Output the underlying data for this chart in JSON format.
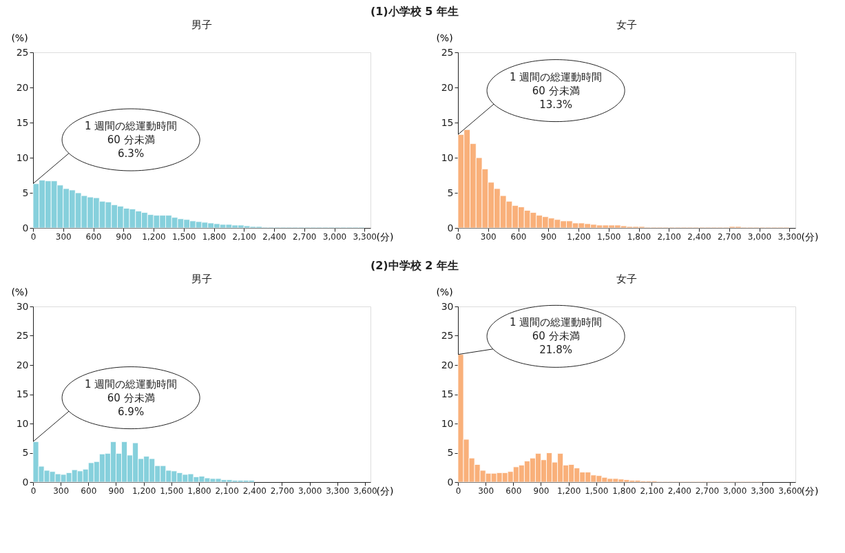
{
  "chart_data": [
    {
      "type": "histogram",
      "title": "(1)小学校 5 年生",
      "subtitle": "男子",
      "xlabel": "(分)",
      "ylabel": "(%)",
      "color": "#86d0dc",
      "bins": [
        0,
        60,
        120,
        180,
        240,
        300,
        360,
        420,
        480,
        540,
        600,
        660,
        720,
        780,
        840,
        900,
        960,
        1020,
        1080,
        1140,
        1200,
        1260,
        1320,
        1380,
        1440,
        1500,
        1560,
        1620,
        1680,
        1740,
        1800,
        1860,
        1920,
        1980,
        2040,
        2100,
        2160,
        2220,
        2280,
        2340,
        2400,
        2460,
        2520,
        2580,
        2640,
        2700,
        2760,
        2820,
        2880,
        2940,
        3000,
        3060,
        3120,
        3180,
        3240,
        3300
      ],
      "values": [
        6.3,
        6.8,
        6.7,
        6.7,
        6.1,
        5.6,
        5.4,
        5.0,
        4.6,
        4.4,
        4.3,
        3.8,
        3.7,
        3.3,
        3.1,
        2.8,
        2.7,
        2.4,
        2.2,
        1.9,
        1.8,
        1.8,
        1.8,
        1.5,
        1.3,
        1.2,
        1.0,
        0.9,
        0.8,
        0.7,
        0.6,
        0.5,
        0.5,
        0.4,
        0.4,
        0.3,
        0.2,
        0.2,
        0.1,
        0.1,
        0.1,
        0.1,
        0.1,
        0.1,
        0.1,
        0.1,
        0.1,
        0.1,
        0.1,
        0.1,
        0.1,
        0.1,
        0.1,
        0.1,
        0.1
      ],
      "xlim": [
        0,
        3360
      ],
      "xticks": [
        0,
        300,
        600,
        900,
        {
          "value": 1200,
          "label": "1,200"
        },
        {
          "value": 1500,
          "label": "1,500"
        },
        {
          "value": 1800,
          "label": "1,800"
        },
        {
          "value": 2100,
          "label": "2,100"
        },
        {
          "value": 2400,
          "label": "2,400"
        },
        {
          "value": 2700,
          "label": "2,700"
        },
        {
          "value": 3000,
          "label": "3,000"
        },
        {
          "value": 3300,
          "label": "3,300"
        }
      ],
      "ylim": [
        0,
        25
      ],
      "yticks": [
        0,
        5,
        10,
        15,
        20,
        25
      ],
      "annotations": [
        "1 週間の総運動時間\n60 分未満\n6.3%"
      ]
    },
    {
      "type": "histogram",
      "title": "女子",
      "xlabel": "(分)",
      "ylabel": "(%)",
      "color": "#f9b07a",
      "bins": [
        0,
        60,
        120,
        180,
        240,
        300,
        360,
        420,
        480,
        540,
        600,
        660,
        720,
        780,
        840,
        900,
        960,
        1020,
        1080,
        1140,
        1200,
        1260,
        1320,
        1380,
        1440,
        1500,
        1560,
        1620,
        1680,
        1740,
        1800,
        1860,
        1920,
        1980,
        2040,
        2100,
        2160,
        2220,
        2280,
        2340,
        2400,
        2460,
        2520,
        2580,
        2640,
        2700,
        2760,
        2820,
        2880,
        2940,
        3000,
        3060,
        3120,
        3180,
        3240,
        3300
      ],
      "values": [
        13.3,
        14.0,
        12.0,
        10.0,
        8.4,
        6.5,
        5.6,
        4.6,
        3.8,
        3.2,
        3.0,
        2.5,
        2.2,
        1.8,
        1.6,
        1.4,
        1.2,
        1.0,
        1.0,
        0.7,
        0.7,
        0.6,
        0.5,
        0.4,
        0.4,
        0.4,
        0.4,
        0.3,
        0.2,
        0.2,
        0.2,
        0.1,
        0.1,
        0.1,
        0.1,
        0.1,
        0.1,
        0.1,
        0.1,
        0.1,
        0.1,
        0.1,
        0.1,
        0.1,
        0.1,
        0.2,
        0.2,
        0.1,
        0.1,
        0.1,
        0.1,
        0.1,
        0.1,
        0.1,
        0.1
      ],
      "xlim": [
        0,
        3360
      ],
      "xticks": [
        0,
        300,
        600,
        900,
        {
          "value": 1200,
          "label": "1,200"
        },
        {
          "value": 1500,
          "label": "1,500"
        },
        {
          "value": 1800,
          "label": "1,800"
        },
        {
          "value": 2100,
          "label": "2,100"
        },
        {
          "value": 2400,
          "label": "2,400"
        },
        {
          "value": 2700,
          "label": "2,700"
        },
        {
          "value": 3000,
          "label": "3,000"
        },
        {
          "value": 3300,
          "label": "3,300"
        }
      ],
      "ylim": [
        0,
        25
      ],
      "yticks": [
        0,
        5,
        10,
        15,
        20,
        25
      ],
      "annotations": [
        "1 週間の総運動時間\n60 分未満\n13.3%"
      ]
    },
    {
      "type": "histogram",
      "title": "(2)中学校 2 年生",
      "subtitle": "男子",
      "xlabel": "(分)",
      "ylabel": "(%)",
      "color": "#86d0dc",
      "bins": [
        0,
        60,
        120,
        180,
        240,
        300,
        360,
        420,
        480,
        540,
        600,
        660,
        720,
        780,
        840,
        900,
        960,
        1020,
        1080,
        1140,
        1200,
        1260,
        1320,
        1380,
        1440,
        1500,
        1560,
        1620,
        1680,
        1740,
        1800,
        1860,
        1920,
        1980,
        2040,
        2100,
        2160,
        2220,
        2280,
        2340,
        2400
      ],
      "values": [
        6.9,
        2.7,
        2.0,
        1.8,
        1.4,
        1.3,
        1.6,
        2.1,
        1.9,
        2.2,
        3.3,
        3.5,
        4.8,
        4.9,
        6.9,
        4.9,
        6.9,
        4.6,
        6.7,
        4.0,
        4.4,
        4.0,
        2.8,
        2.8,
        2.0,
        1.9,
        1.6,
        1.3,
        1.4,
        0.9,
        1.0,
        0.7,
        0.6,
        0.6,
        0.4,
        0.4,
        0.3,
        0.3,
        0.3,
        0.3
      ],
      "xlim": [
        0,
        3660
      ],
      "xticks": [
        0,
        300,
        600,
        900,
        {
          "value": 1200,
          "label": "1,200"
        },
        {
          "value": 1500,
          "label": "1,500"
        },
        {
          "value": 1800,
          "label": "1,800"
        },
        {
          "value": 2100,
          "label": "2,100"
        },
        {
          "value": 2400,
          "label": "2,400"
        },
        {
          "value": 2700,
          "label": "2,700"
        },
        {
          "value": 3000,
          "label": "3,000"
        },
        {
          "value": 3300,
          "label": "3,300"
        },
        {
          "value": 3600,
          "label": "3,600"
        }
      ],
      "ylim": [
        0,
        30
      ],
      "yticks": [
        0,
        5,
        10,
        15,
        20,
        25,
        30
      ],
      "annotations": [
        "1 週間の総運動時間\n60 分未満\n6.9%"
      ]
    },
    {
      "type": "histogram",
      "title": "女子",
      "xlabel": "(分)",
      "ylabel": "(%)",
      "color": "#f9b07a",
      "bins": [
        0,
        60,
        120,
        180,
        240,
        300,
        360,
        420,
        480,
        540,
        600,
        660,
        720,
        780,
        840,
        900,
        960,
        1020,
        1080,
        1140,
        1200,
        1260,
        1320,
        1380,
        1440,
        1500,
        1560,
        1620,
        1680,
        1740,
        1800,
        1860,
        1920,
        1980,
        2040,
        2100,
        2160,
        2220,
        2280,
        2340,
        2400,
        2460,
        2520,
        2580,
        2640,
        2700,
        2760,
        2820,
        2880,
        2940,
        3000,
        3060,
        3120,
        3180,
        3240,
        3300
      ],
      "values": [
        21.8,
        7.3,
        4.1,
        3.0,
        2.0,
        1.5,
        1.5,
        1.6,
        1.6,
        1.8,
        2.6,
        2.9,
        3.6,
        4.1,
        4.9,
        3.8,
        5.0,
        3.4,
        4.9,
        2.9,
        3.0,
        2.4,
        1.7,
        1.7,
        1.2,
        1.1,
        0.8,
        0.6,
        0.6,
        0.5,
        0.4,
        0.3,
        0.3,
        0.2,
        0.2,
        0.2,
        0.1,
        0.1,
        0.1,
        0.1,
        0.1,
        0.1,
        0.1,
        0.1,
        0.1,
        0.1,
        0.1,
        0.1,
        0.1,
        0.1,
        0.1,
        0.1,
        0.1,
        0.1,
        0.1
      ],
      "xlim": [
        0,
        3660
      ],
      "xticks": [
        0,
        300,
        600,
        900,
        {
          "value": 1200,
          "label": "1,200"
        },
        {
          "value": 1500,
          "label": "1,500"
        },
        {
          "value": 1800,
          "label": "1,800"
        },
        {
          "value": 2100,
          "label": "2,100"
        },
        {
          "value": 2400,
          "label": "2,400"
        },
        {
          "value": 2700,
          "label": "2,700"
        },
        {
          "value": 3000,
          "label": "3,000"
        },
        {
          "value": 3300,
          "label": "3,300"
        },
        {
          "value": 3600,
          "label": "3,600"
        }
      ],
      "ylim": [
        0,
        30
      ],
      "yticks": [
        0,
        5,
        10,
        15,
        20,
        25,
        30
      ],
      "annotations": [
        "1 週間の総運動時間\n60 分未満\n21.8%"
      ]
    }
  ]
}
